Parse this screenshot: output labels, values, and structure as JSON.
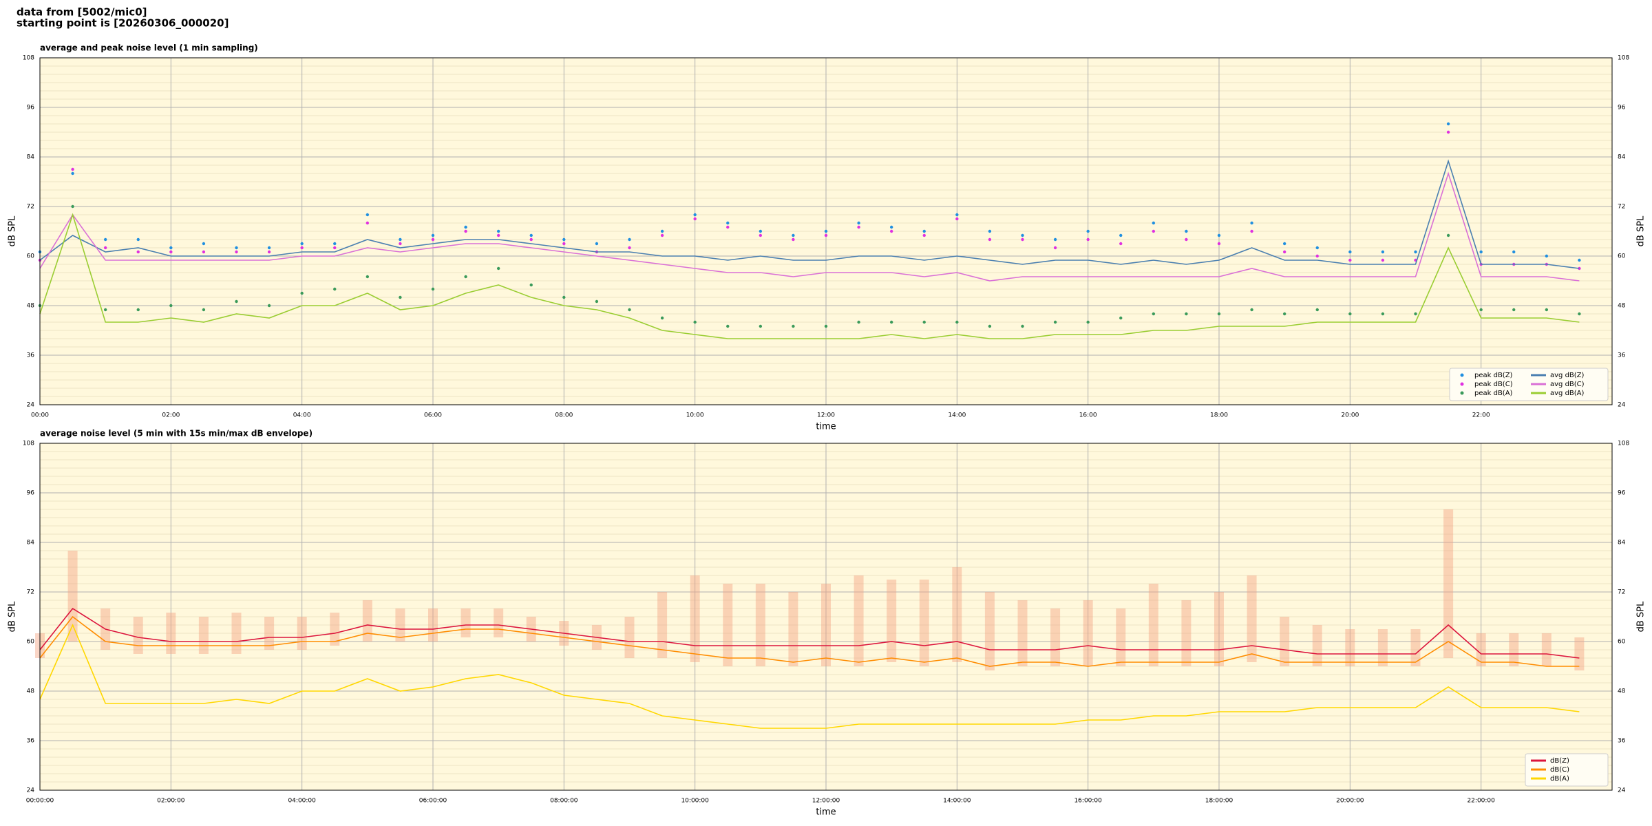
{
  "header": {
    "source": "data from [5002/mic0]",
    "start": "starting point is [20260306_000020]"
  },
  "chart_data": [
    {
      "type": "line",
      "title": "average and peak noise level (1 min sampling)",
      "x_label": "time",
      "y_label": "dB SPL",
      "xlim": [
        "00:00",
        "24:00"
      ],
      "ylim": [
        24,
        108
      ],
      "yticks": [
        24,
        36,
        48,
        60,
        72,
        84,
        96,
        108
      ],
      "yminorticks": [
        26,
        28,
        30,
        32,
        34,
        38,
        40,
        42,
        44,
        46,
        50,
        52,
        54,
        56,
        58,
        62,
        64,
        66,
        68,
        70,
        74,
        76,
        78,
        80,
        82,
        86,
        88,
        90,
        92,
        94,
        98,
        100,
        102,
        104,
        106
      ],
      "xticks": [
        "00:00",
        "02:00",
        "04:00",
        "06:00",
        "08:00",
        "10:00",
        "12:00",
        "14:00",
        "16:00",
        "18:00",
        "20:00",
        "22:00"
      ],
      "grid": true,
      "legend": "lower right",
      "background": "#fff8dc",
      "x": [
        "00:00",
        "00:30",
        "01:00",
        "01:30",
        "02:00",
        "02:30",
        "03:00",
        "03:30",
        "04:00",
        "04:30",
        "05:00",
        "05:30",
        "06:00",
        "06:30",
        "07:00",
        "07:30",
        "08:00",
        "08:30",
        "09:00",
        "09:30",
        "10:00",
        "10:30",
        "11:00",
        "11:30",
        "12:00",
        "12:30",
        "13:00",
        "13:30",
        "14:00",
        "14:30",
        "15:00",
        "15:30",
        "16:00",
        "16:30",
        "17:00",
        "17:30",
        "18:00",
        "18:30",
        "19:00",
        "19:30",
        "20:00",
        "20:30",
        "21:00",
        "21:30",
        "22:00",
        "22:30",
        "23:00",
        "23:30"
      ],
      "series": [
        {
          "name": "peak dB(Z)",
          "type": "scatter",
          "color": "#1f8fe0",
          "values": [
            61,
            80,
            64,
            64,
            62,
            63,
            62,
            62,
            63,
            63,
            70,
            64,
            65,
            67,
            66,
            65,
            64,
            63,
            64,
            66,
            70,
            68,
            66,
            65,
            66,
            68,
            67,
            66,
            70,
            66,
            65,
            64,
            66,
            65,
            68,
            66,
            65,
            68,
            63,
            62,
            61,
            61,
            61,
            92,
            61,
            61,
            60,
            59
          ]
        },
        {
          "name": "peak dB(C)",
          "type": "scatter",
          "color": "#e030e0",
          "values": [
            59,
            81,
            62,
            61,
            61,
            61,
            61,
            61,
            62,
            62,
            68,
            63,
            64,
            66,
            65,
            64,
            63,
            61,
            62,
            65,
            69,
            67,
            65,
            64,
            65,
            67,
            66,
            65,
            69,
            64,
            64,
            62,
            64,
            63,
            66,
            64,
            63,
            66,
            61,
            60,
            59,
            59,
            59,
            90,
            58,
            58,
            58,
            57
          ]
        },
        {
          "name": "peak dB(A)",
          "type": "scatter",
          "color": "#3a9a5a",
          "values": [
            48,
            72,
            47,
            47,
            48,
            47,
            49,
            48,
            51,
            52,
            55,
            50,
            52,
            55,
            57,
            53,
            50,
            49,
            47,
            45,
            44,
            43,
            43,
            43,
            43,
            44,
            44,
            44,
            44,
            43,
            43,
            44,
            44,
            45,
            46,
            46,
            46,
            47,
            46,
            47,
            46,
            46,
            46,
            65,
            47,
            47,
            47,
            46
          ]
        },
        {
          "name": "avg dB(Z)",
          "type": "line",
          "color": "#4a7fb0",
          "values": [
            59,
            65,
            61,
            62,
            60,
            60,
            60,
            60,
            61,
            61,
            64,
            62,
            63,
            64,
            64,
            63,
            62,
            61,
            61,
            60,
            60,
            59,
            60,
            59,
            59,
            60,
            60,
            59,
            60,
            59,
            58,
            59,
            59,
            58,
            59,
            58,
            59,
            62,
            59,
            59,
            58,
            58,
            58,
            83,
            58,
            58,
            58,
            57
          ]
        },
        {
          "name": "avg dB(C)",
          "type": "line",
          "color": "#da70d6",
          "values": [
            57,
            70,
            59,
            59,
            59,
            59,
            59,
            59,
            60,
            60,
            62,
            61,
            62,
            63,
            63,
            62,
            61,
            60,
            59,
            58,
            57,
            56,
            56,
            55,
            56,
            56,
            56,
            55,
            56,
            54,
            55,
            55,
            55,
            55,
            55,
            55,
            55,
            57,
            55,
            55,
            55,
            55,
            55,
            80,
            55,
            55,
            55,
            54
          ]
        },
        {
          "name": "avg dB(A)",
          "type": "line",
          "color": "#9acd32",
          "values": [
            46,
            70,
            44,
            44,
            45,
            44,
            46,
            45,
            48,
            48,
            51,
            47,
            48,
            51,
            53,
            50,
            48,
            47,
            45,
            42,
            41,
            40,
            40,
            40,
            40,
            40,
            41,
            40,
            41,
            40,
            40,
            41,
            41,
            41,
            42,
            42,
            43,
            43,
            43,
            44,
            44,
            44,
            44,
            62,
            45,
            45,
            45,
            44
          ]
        }
      ]
    },
    {
      "type": "line",
      "title": "average noise level (5 min with 15s min/max dB envelope)",
      "x_label": "time",
      "y_label": "dB SPL",
      "xlim": [
        "00:00:00",
        "24:00:00"
      ],
      "ylim": [
        24,
        108
      ],
      "yticks": [
        24,
        36,
        48,
        60,
        72,
        84,
        96,
        108
      ],
      "yminorticks": [
        26,
        28,
        30,
        32,
        34,
        38,
        40,
        42,
        44,
        46,
        50,
        52,
        54,
        56,
        58,
        62,
        64,
        66,
        68,
        70,
        74,
        76,
        78,
        80,
        82,
        86,
        88,
        90,
        92,
        94,
        98,
        100,
        102,
        104,
        106
      ],
      "xticks": [
        "00:00:00",
        "02:00:00",
        "04:00:00",
        "06:00:00",
        "08:00:00",
        "10:00:00",
        "12:00:00",
        "14:00:00",
        "16:00:00",
        "18:00:00",
        "20:00:00",
        "22:00:00"
      ],
      "grid": true,
      "legend": "lower right",
      "background": "#fff8dc",
      "envelope_color": "#f4a582",
      "x": [
        "00:00:00",
        "00:30:00",
        "01:00:00",
        "01:30:00",
        "02:00:00",
        "02:30:00",
        "03:00:00",
        "03:30:00",
        "04:00:00",
        "04:30:00",
        "05:00:00",
        "05:30:00",
        "06:00:00",
        "06:30:00",
        "07:00:00",
        "07:30:00",
        "08:00:00",
        "08:30:00",
        "09:00:00",
        "09:30:00",
        "10:00:00",
        "10:30:00",
        "11:00:00",
        "11:30:00",
        "12:00:00",
        "12:30:00",
        "13:00:00",
        "13:30:00",
        "14:00:00",
        "14:30:00",
        "15:00:00",
        "15:30:00",
        "16:00:00",
        "16:30:00",
        "17:00:00",
        "17:30:00",
        "18:00:00",
        "18:30:00",
        "19:00:00",
        "19:30:00",
        "20:00:00",
        "20:30:00",
        "21:00:00",
        "21:30:00",
        "22:00:00",
        "22:30:00",
        "23:00:00",
        "23:30:00"
      ],
      "series": [
        {
          "name": "dB(Z)",
          "type": "line",
          "color": "#dc143c",
          "values": [
            58,
            68,
            63,
            61,
            60,
            60,
            60,
            61,
            61,
            62,
            64,
            63,
            63,
            64,
            64,
            63,
            62,
            61,
            60,
            60,
            59,
            59,
            59,
            59,
            59,
            59,
            60,
            59,
            60,
            58,
            58,
            58,
            59,
            58,
            58,
            58,
            58,
            59,
            58,
            57,
            57,
            57,
            57,
            64,
            57,
            57,
            57,
            56
          ],
          "min": [
            56,
            60,
            58,
            57,
            57,
            57,
            57,
            58,
            58,
            59,
            60,
            60,
            60,
            61,
            61,
            60,
            59,
            58,
            56,
            56,
            55,
            54,
            54,
            54,
            54,
            54,
            55,
            54,
            55,
            53,
            54,
            54,
            54,
            54,
            54,
            54,
            54,
            55,
            54,
            54,
            54,
            54,
            54,
            56,
            54,
            54,
            54,
            53
          ],
          "max": [
            62,
            82,
            68,
            66,
            67,
            66,
            67,
            66,
            66,
            67,
            70,
            68,
            68,
            68,
            68,
            66,
            65,
            64,
            66,
            72,
            76,
            74,
            74,
            72,
            74,
            76,
            75,
            75,
            78,
            72,
            70,
            68,
            70,
            68,
            74,
            70,
            72,
            76,
            66,
            64,
            63,
            63,
            63,
            92,
            62,
            62,
            62,
            61
          ]
        },
        {
          "name": "dB(C)",
          "type": "line",
          "color": "#ff8c00",
          "values": [
            56,
            66,
            60,
            59,
            59,
            59,
            59,
            59,
            60,
            60,
            62,
            61,
            62,
            63,
            63,
            62,
            61,
            60,
            59,
            58,
            57,
            56,
            56,
            55,
            56,
            55,
            56,
            55,
            56,
            54,
            55,
            55,
            54,
            55,
            55,
            55,
            55,
            57,
            55,
            55,
            55,
            55,
            55,
            60,
            55,
            55,
            54,
            54
          ]
        },
        {
          "name": "dB(A)",
          "type": "line",
          "color": "#ffd700",
          "values": [
            46,
            64,
            45,
            45,
            45,
            45,
            46,
            45,
            48,
            48,
            51,
            48,
            49,
            51,
            52,
            50,
            47,
            46,
            45,
            42,
            41,
            40,
            39,
            39,
            39,
            40,
            40,
            40,
            40,
            40,
            40,
            40,
            41,
            41,
            42,
            42,
            43,
            43,
            43,
            44,
            44,
            44,
            44,
            49,
            44,
            44,
            44,
            43
          ]
        }
      ]
    }
  ]
}
